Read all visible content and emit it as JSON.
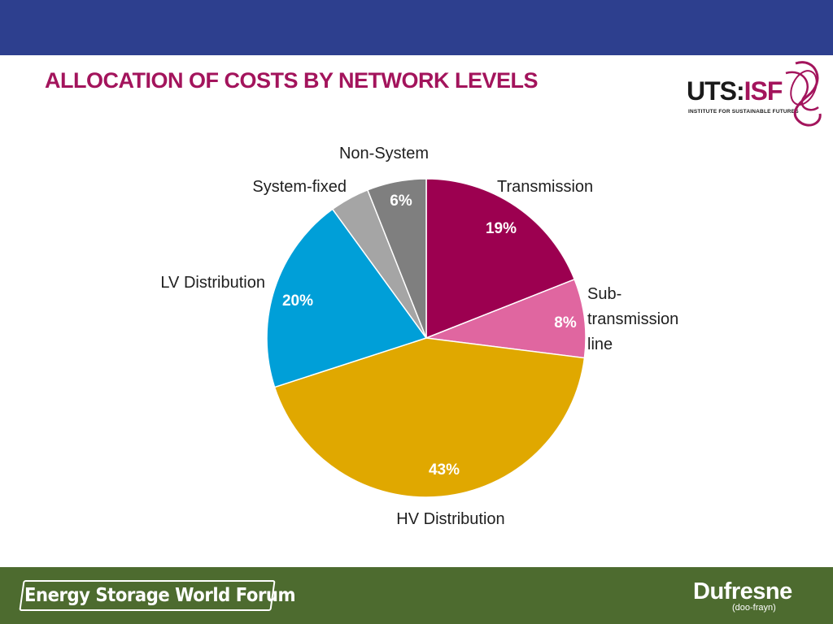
{
  "slide": {
    "title": "ALLOCATION OF COSTS BY NETWORK LEVELS",
    "header_color": "#2d3f8e",
    "footer_color": "#4d6b2f",
    "title_color": "#a3145c"
  },
  "logos": {
    "uts_isf": {
      "word_uts": "UTS:",
      "word_isf": "ISF",
      "tagline": "INSTITUTE FOR SUSTAINABLE FUTURES",
      "icon": "ribbon-swirl-icon"
    },
    "esw": {
      "text": "Energy Storage World Forum"
    },
    "dufresne": {
      "name": "Dufresne",
      "sub": "(doo-frayn)"
    }
  },
  "chart_data": {
    "type": "pie",
    "title": "",
    "start_angle_deg": 0,
    "direction": "clockwise",
    "slices": [
      {
        "name": "Transmission",
        "label_lines": [
          "Transmission"
        ],
        "value": 19,
        "label": "19%",
        "color": "#9c0050",
        "pct_color": "#ffffff"
      },
      {
        "name": "Sub-transmission line",
        "label_lines": [
          "Sub-",
          "transmission",
          "line"
        ],
        "value": 8,
        "label": "8%",
        "color": "#e066a0",
        "pct_color": "#ffffff"
      },
      {
        "name": "HV Distribution",
        "label_lines": [
          "HV Distribution"
        ],
        "value": 43,
        "label": "43%",
        "color": "#e0a800",
        "pct_color": "#ffffff"
      },
      {
        "name": "LV Distribution",
        "label_lines": [
          "LV Distribution"
        ],
        "value": 20,
        "label": "20%",
        "color": "#009fd8",
        "pct_color": "#ffffff"
      },
      {
        "name": "System-fixed",
        "label_lines": [
          "System-fixed"
        ],
        "value": 4,
        "label": "",
        "color": "#a5a5a5",
        "pct_color": "#ffffff"
      },
      {
        "name": "Non-System",
        "label_lines": [
          "Non-System"
        ],
        "value": 6,
        "label": "6%",
        "color": "#7f7f7f",
        "pct_color": "#ffffff"
      }
    ]
  }
}
